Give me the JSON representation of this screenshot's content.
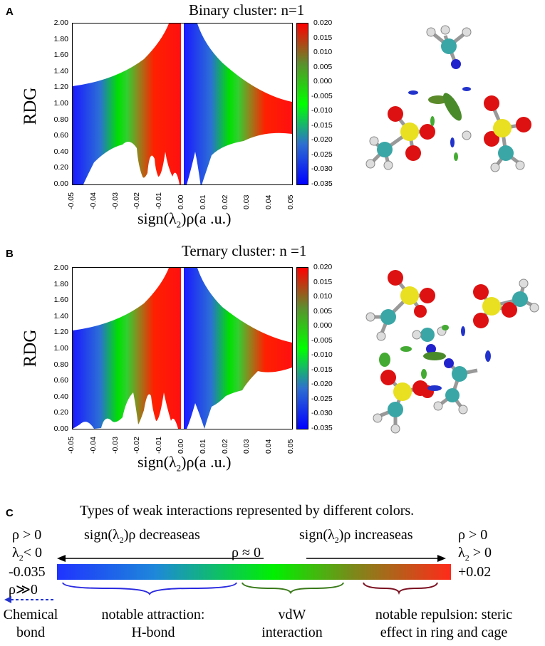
{
  "panelA": {
    "label": "A",
    "title": "Binary cluster: n=1",
    "ylabel": "RDG",
    "xlabel_main": "sign(λ",
    "xlabel_sub": "2",
    "xlabel_tail": ")ρ(a .u.)",
    "yticks": [
      "2.00",
      "1.80",
      "1.60",
      "1.40",
      "1.20",
      "1.00",
      "0.80",
      "0.60",
      "0.40",
      "0.20",
      "0.00"
    ],
    "xticks": [
      "-0.05",
      "-0.04",
      "-0.03",
      "-0.02",
      "-0.01",
      "0.00",
      "0.01",
      "0.02",
      "0.03",
      "0.04",
      "0.05"
    ],
    "cbticks": [
      "0.020",
      "0.015",
      "0.010",
      "0.005",
      "0.000",
      "-0.005",
      "-0.010",
      "-0.015",
      "-0.020",
      "-0.025",
      "-0.030",
      "-0.035"
    ]
  },
  "panelB": {
    "label": "B",
    "title": "Ternary cluster: n =1",
    "ylabel": "RDG",
    "xlabel_main": "sign(λ",
    "xlabel_sub": "2",
    "xlabel_tail": ")ρ(a .u.)",
    "yticks": [
      "2.00",
      "1.80",
      "1.60",
      "1.40",
      "1.20",
      "1.00",
      "0.80",
      "0.60",
      "0.40",
      "0.20",
      "0.00"
    ],
    "xticks": [
      "-0.05",
      "-0.04",
      "-0.03",
      "-0.02",
      "-0.01",
      "0.00",
      "0.01",
      "0.02",
      "0.03",
      "0.04",
      "0.05"
    ],
    "cbticks": [
      "0.020",
      "0.015",
      "0.010",
      "0.005",
      "0.000",
      "-0.005",
      "-0.010",
      "-0.015",
      "-0.020",
      "-0.025",
      "-0.030",
      "-0.035"
    ]
  },
  "panelC": {
    "label": "C",
    "title": "Types of weak interactions represented by different colors.",
    "left_rho": "ρ > 0",
    "left_lambda": "λ",
    "left_lambda_sub": "2",
    "left_lambda_tail": "< 0",
    "left_value": "-0.035",
    "left_rho2": "ρ≫0",
    "right_rho": "ρ > 0",
    "right_lambda": "λ",
    "right_lambda_sub": "2",
    "right_lambda_tail": " > 0",
    "right_value": "+0.02",
    "decreases": "sign(λ",
    "decreases_sub": "2",
    "decreases_tail": ")ρ decreaseas",
    "increases": "sign(λ",
    "increases_sub": "2",
    "increases_tail": ")ρ increaseas",
    "middle": "ρ ≈ 0",
    "chem1": "Chemical",
    "chem2": "bond",
    "attr1": "notable attraction:",
    "attr2": "H-bond",
    "vdw1": "vdW",
    "vdw2": "interaction",
    "rep1": "notable repulsion: steric",
    "rep2": "effect in ring and cage"
  },
  "colors": {
    "blue": "#1f33ff",
    "green": "#00f000",
    "red": "#ff2a1a",
    "brace_blue": "#2a2ae0",
    "brace_green": "#3a7a1a",
    "brace_red": "#7a1020"
  }
}
